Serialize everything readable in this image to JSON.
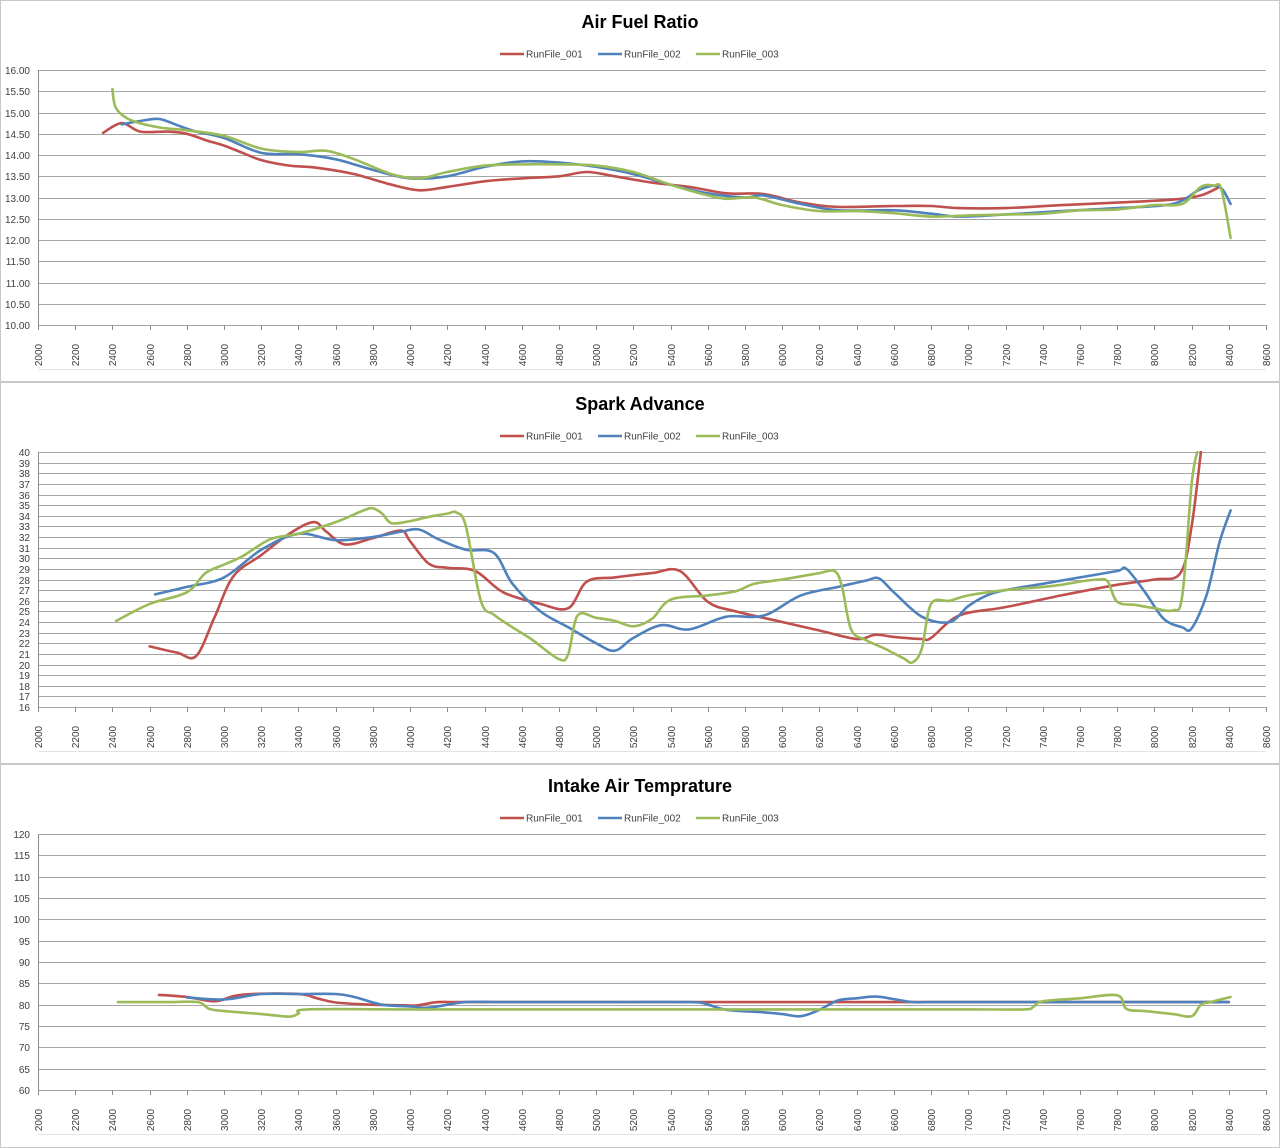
{
  "chart_data": [
    {
      "type": "line",
      "title": "Air Fuel Ratio",
      "xlim": [
        2000,
        8600
      ],
      "xticks": [
        2000,
        2200,
        2400,
        2600,
        2800,
        3000,
        3200,
        3400,
        3600,
        3800,
        4000,
        4200,
        4400,
        4600,
        4800,
        5000,
        5200,
        5400,
        5600,
        5800,
        6000,
        6200,
        6400,
        6600,
        6800,
        7000,
        7200,
        7400,
        7600,
        7800,
        8000,
        8200,
        8400,
        8600
      ],
      "ylim": [
        10,
        16
      ],
      "yticks": [
        "10.00",
        "10.50",
        "11.00",
        "11.50",
        "12.00",
        "12.50",
        "13.00",
        "13.50",
        "14.00",
        "14.50",
        "15.00",
        "15.50",
        "16.00"
      ],
      "grid": true,
      "legend": "top-center",
      "series": [
        {
          "name": "RunFile_001",
          "color": "#c0504d",
          "x": [
            2350,
            2450,
            2550,
            2700,
            2800,
            2900,
            3000,
            3100,
            3200,
            3350,
            3500,
            3700,
            3900,
            4050,
            4200,
            4400,
            4600,
            4800,
            4950,
            5100,
            5300,
            5500,
            5700,
            5900,
            6100,
            6300,
            6600,
            6800,
            6950,
            7200,
            7500,
            7800,
            8100,
            8250,
            8350
          ],
          "y": [
            14.52,
            14.75,
            14.55,
            14.55,
            14.5,
            14.35,
            14.22,
            14.05,
            13.88,
            13.75,
            13.7,
            13.55,
            13.3,
            13.17,
            13.25,
            13.38,
            13.45,
            13.5,
            13.6,
            13.5,
            13.35,
            13.25,
            13.1,
            13.08,
            12.88,
            12.78,
            12.8,
            12.8,
            12.75,
            12.75,
            12.82,
            12.88,
            12.95,
            13.05,
            13.25
          ]
        },
        {
          "name": "RunFile_002",
          "color": "#4f81bd",
          "x": [
            2450,
            2550,
            2650,
            2750,
            2850,
            3000,
            3200,
            3400,
            3600,
            3800,
            4000,
            4200,
            4400,
            4600,
            4800,
            5000,
            5200,
            5400,
            5600,
            5800,
            5900,
            6100,
            6300,
            6600,
            6800,
            6950,
            7200,
            7500,
            7800,
            8100,
            8250,
            8350,
            8410
          ],
          "y": [
            14.72,
            14.8,
            14.85,
            14.7,
            14.55,
            14.4,
            14.05,
            14.02,
            13.9,
            13.65,
            13.45,
            13.5,
            13.72,
            13.85,
            13.82,
            13.72,
            13.55,
            13.3,
            13.1,
            13.0,
            13.05,
            12.85,
            12.7,
            12.7,
            12.62,
            12.55,
            12.6,
            12.68,
            12.75,
            12.85,
            13.2,
            13.25,
            12.85
          ]
        },
        {
          "name": "RunFile_003",
          "color": "#9bbb59",
          "x": [
            2400,
            2420,
            2500,
            2650,
            2800,
            3000,
            3200,
            3400,
            3550,
            3700,
            3900,
            4050,
            4200,
            4400,
            4600,
            4800,
            5000,
            5200,
            5400,
            5600,
            5700,
            5850,
            6000,
            6200,
            6400,
            6600,
            6800,
            7000,
            7200,
            7400,
            7600,
            7800,
            8000,
            8150,
            8250,
            8320,
            8360,
            8410
          ],
          "y": [
            15.55,
            15.1,
            14.82,
            14.65,
            14.58,
            14.45,
            14.15,
            14.07,
            14.1,
            13.9,
            13.55,
            13.45,
            13.6,
            13.75,
            13.78,
            13.78,
            13.75,
            13.6,
            13.3,
            13.05,
            12.97,
            13.0,
            12.82,
            12.68,
            12.68,
            12.63,
            12.55,
            12.58,
            12.6,
            12.62,
            12.7,
            12.72,
            12.82,
            12.85,
            13.25,
            13.28,
            13.2,
            12.05
          ]
        }
      ]
    },
    {
      "type": "line",
      "title": "Spark Advance",
      "xlim": [
        2000,
        8600
      ],
      "xticks": [
        2000,
        2200,
        2400,
        2600,
        2800,
        3000,
        3200,
        3400,
        3600,
        3800,
        4000,
        4200,
        4400,
        4600,
        4800,
        5000,
        5200,
        5400,
        5600,
        5800,
        6000,
        6200,
        6400,
        6600,
        6800,
        7000,
        7200,
        7400,
        7600,
        7800,
        8000,
        8200,
        8400,
        8600
      ],
      "ylim": [
        16,
        40
      ],
      "yticks": [
        16,
        17,
        18,
        19,
        20,
        21,
        22,
        23,
        24,
        25,
        26,
        27,
        28,
        29,
        30,
        31,
        32,
        33,
        34,
        35,
        36,
        37,
        38,
        39,
        40
      ],
      "grid": true,
      "legend": "top-center",
      "series": [
        {
          "name": "RunFile_001",
          "color": "#c0504d",
          "x": [
            2600,
            2750,
            2850,
            2950,
            3050,
            3200,
            3350,
            3480,
            3550,
            3650,
            3800,
            3950,
            4000,
            4100,
            4200,
            4350,
            4500,
            4700,
            4850,
            4950,
            5100,
            5300,
            5450,
            5600,
            5750,
            6000,
            6200,
            6400,
            6500,
            6600,
            6750,
            6800,
            6950,
            7200,
            7500,
            7800,
            8000,
            8140,
            8200,
            8250
          ],
          "y": [
            21.7,
            21.1,
            20.8,
            24.5,
            28.3,
            30.3,
            32.3,
            33.4,
            32.5,
            31.3,
            31.9,
            32.6,
            31.6,
            29.5,
            29.1,
            28.8,
            26.8,
            25.7,
            25.3,
            27.8,
            28.2,
            28.6,
            28.8,
            25.9,
            25.0,
            24.0,
            23.2,
            22.4,
            22.8,
            22.6,
            22.4,
            22.5,
            24.6,
            25.4,
            26.5,
            27.5,
            28.0,
            28.6,
            33.0,
            40.0
          ]
        },
        {
          "name": "RunFile_002",
          "color": "#4f81bd",
          "x": [
            2630,
            2800,
            3000,
            3200,
            3400,
            3600,
            3800,
            3950,
            4050,
            4150,
            4300,
            4450,
            4550,
            4700,
            4850,
            5000,
            5100,
            5200,
            5350,
            5500,
            5700,
            5900,
            6100,
            6300,
            6450,
            6520,
            6600,
            6750,
            6900,
            7000,
            7100,
            7200,
            7400,
            7600,
            7800,
            7850,
            7950,
            8050,
            8150,
            8200,
            8280,
            8350,
            8410
          ],
          "y": [
            26.6,
            27.3,
            28.2,
            30.8,
            32.3,
            31.7,
            32.0,
            32.5,
            32.7,
            31.8,
            30.8,
            30.5,
            27.6,
            25.0,
            23.5,
            22.0,
            21.3,
            22.5,
            23.7,
            23.3,
            24.5,
            24.6,
            26.5,
            27.3,
            27.9,
            28.1,
            26.8,
            24.5,
            24.0,
            25.5,
            26.5,
            27.0,
            27.6,
            28.2,
            28.8,
            29.0,
            26.8,
            24.3,
            23.5,
            23.4,
            26.5,
            31.5,
            34.5
          ]
        },
        {
          "name": "RunFile_003",
          "color": "#9bbb59",
          "x": [
            2420,
            2600,
            2800,
            2900,
            3000,
            3100,
            3250,
            3400,
            3600,
            3750,
            3800,
            3850,
            3900,
            4000,
            4100,
            4200,
            4250,
            4300,
            4380,
            4450,
            4550,
            4650,
            4800,
            4850,
            4900,
            5000,
            5100,
            5200,
            5300,
            5400,
            5600,
            5750,
            5850,
            6000,
            6100,
            6200,
            6280,
            6320,
            6370,
            6450,
            6550,
            6650,
            6700,
            6750,
            6800,
            6900,
            7000,
            7200,
            7400,
            7500,
            7600,
            7700,
            7750,
            7800,
            7900,
            8000,
            8100,
            8150,
            8200,
            8230
          ],
          "y": [
            24.1,
            25.7,
            26.8,
            28.6,
            29.4,
            30.2,
            31.8,
            32.3,
            33.4,
            34.5,
            34.7,
            34.2,
            33.3,
            33.5,
            33.9,
            34.2,
            34.3,
            33.0,
            26.0,
            24.7,
            23.5,
            22.4,
            20.5,
            21.0,
            24.6,
            24.4,
            24.1,
            23.6,
            24.3,
            26.1,
            26.5,
            26.9,
            27.6,
            28.0,
            28.3,
            28.6,
            28.8,
            27.4,
            23.3,
            22.3,
            21.5,
            20.6,
            20.2,
            21.5,
            25.7,
            26.0,
            26.5,
            27.0,
            27.3,
            27.5,
            27.8,
            28.0,
            27.8,
            25.9,
            25.6,
            25.3,
            25.1,
            26.5,
            37.0,
            40.0
          ]
        }
      ]
    },
    {
      "type": "line",
      "title": "Intake Air Temprature",
      "xlim": [
        2000,
        8600
      ],
      "xticks": [
        2000,
        2200,
        2400,
        2600,
        2800,
        3000,
        3200,
        3400,
        3600,
        3800,
        4000,
        4200,
        4400,
        4600,
        4800,
        5000,
        5200,
        5400,
        5600,
        5800,
        6000,
        6200,
        6400,
        6600,
        6800,
        7000,
        7200,
        7400,
        7600,
        7800,
        8000,
        8200,
        8400,
        8600
      ],
      "ylim": [
        60,
        120
      ],
      "yticks": [
        60,
        65,
        70,
        75,
        80,
        85,
        90,
        95,
        100,
        105,
        110,
        115,
        120
      ],
      "grid": true,
      "legend": "top-center",
      "series": [
        {
          "name": "RunFile_001",
          "color": "#c0504d",
          "x": [
            2650,
            2800,
            2950,
            3050,
            3150,
            3400,
            3500,
            3600,
            3800,
            4000,
            4050,
            4150,
            4300,
            5000,
            5500,
            6000,
            6500,
            7000,
            7500,
            8000,
            8400
          ],
          "y": [
            82.3,
            81.8,
            80.8,
            82.0,
            82.5,
            82.5,
            81.5,
            80.5,
            80.0,
            79.8,
            79.9,
            80.6,
            80.6,
            80.6,
            80.6,
            80.6,
            80.6,
            80.6,
            80.6,
            80.6,
            80.6
          ]
        },
        {
          "name": "RunFile_002",
          "color": "#4f81bd",
          "x": [
            2800,
            3000,
            3200,
            3400,
            3600,
            3700,
            3850,
            4000,
            4100,
            4300,
            4500,
            5000,
            5500,
            5600,
            5700,
            5900,
            6000,
            6100,
            6200,
            6300,
            6400,
            6500,
            6600,
            6700,
            6800,
            7000,
            7500,
            8000,
            8400
          ],
          "y": [
            81.7,
            81.2,
            82.5,
            82.5,
            82.5,
            81.8,
            80.0,
            79.6,
            79.3,
            80.6,
            80.6,
            80.6,
            80.6,
            80.0,
            78.8,
            78.2,
            77.8,
            77.3,
            78.8,
            81.0,
            81.5,
            81.9,
            81.3,
            80.6,
            80.6,
            80.6,
            80.6,
            80.6,
            80.6
          ]
        },
        {
          "name": "RunFile_003",
          "color": "#9bbb59",
          "x": [
            2430,
            2700,
            2860,
            2920,
            3000,
            3200,
            3350,
            3400,
            3450,
            4000,
            5000,
            6000,
            6500,
            7000,
            7300,
            7350,
            7400,
            7600,
            7800,
            7850,
            7950,
            8100,
            8200,
            8250,
            8300,
            8410
          ],
          "y": [
            80.6,
            80.6,
            80.6,
            79.0,
            78.5,
            77.8,
            77.2,
            77.9,
            78.9,
            78.9,
            78.9,
            78.9,
            78.9,
            78.9,
            78.9,
            79.5,
            80.8,
            81.5,
            82.2,
            79.0,
            78.5,
            77.8,
            77.3,
            80.0,
            80.6,
            81.8
          ]
        }
      ]
    }
  ]
}
